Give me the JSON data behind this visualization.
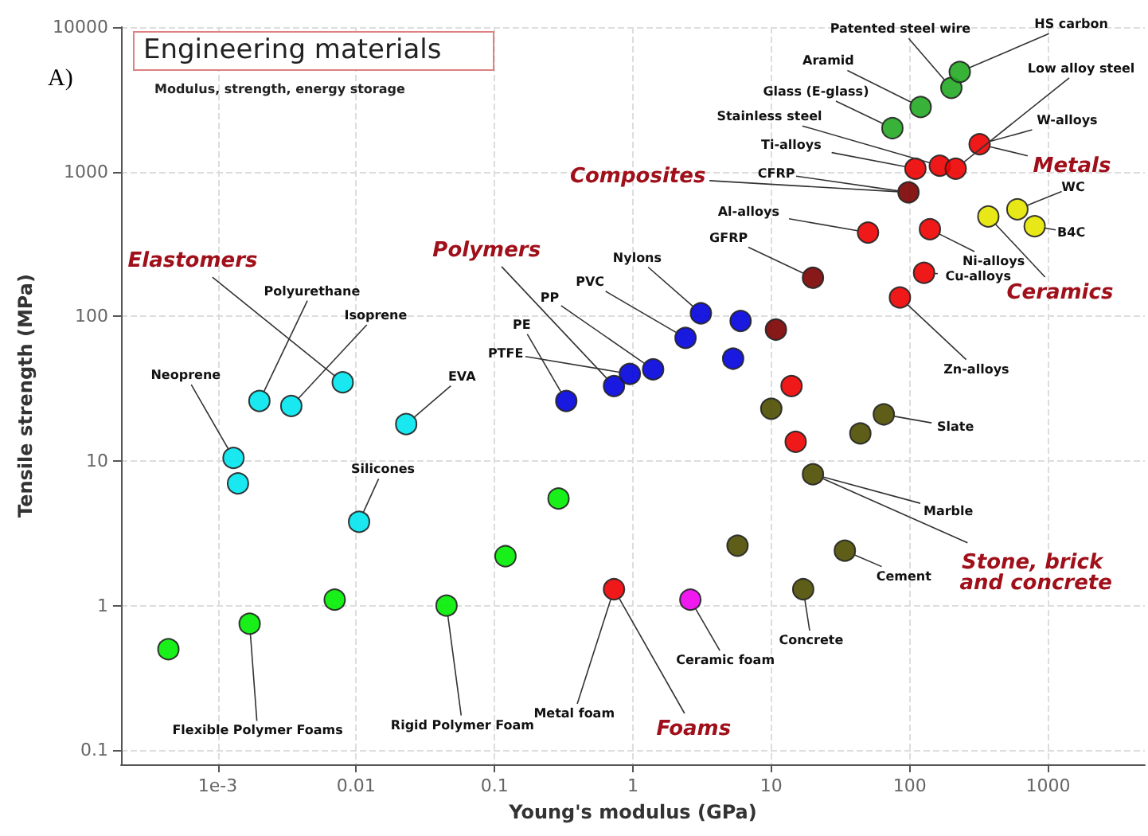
{
  "chart_data": {
    "type": "scatter",
    "title": "Engineering materials",
    "subtitle": "Modulus, strength, energy storage",
    "xlabel": "Young's modulus (GPa)",
    "ylabel": "Tensile strength (MPa)",
    "log": "xy",
    "grid": true,
    "marker": "circle",
    "xlim": [
      0.0002,
      5000
    ],
    "ylim": [
      0.08,
      10000
    ],
    "xticks": [
      {
        "value": 0.001,
        "label": "1e-3"
      },
      0.01,
      0.1,
      1,
      10,
      100,
      1000
    ],
    "yticks": [
      0.1,
      1,
      10,
      100,
      1000,
      10000
    ],
    "series": [
      {
        "name": "Elastomers",
        "color": "#00e5ee",
        "x": [
          0.008,
          0.002,
          0.0034,
          0.0013,
          0.0014,
          0.023,
          0.0105
        ],
        "values": [
          35,
          26,
          24,
          10.5,
          7,
          18,
          3.8
        ]
      },
      {
        "name": "Polymers",
        "color": "#0000dd",
        "x": [
          0.33,
          0.73,
          1.4,
          2.4,
          3.1,
          6,
          5.3,
          0.95
        ],
        "values": [
          26,
          33,
          43,
          71,
          105,
          93,
          51,
          40
        ]
      },
      {
        "name": "Foams",
        "color": "#00ee00",
        "colors": [
          "#00ee00",
          "#00ee00",
          "#00ee00",
          "#00ee00",
          "#00ee00",
          "#00ee00",
          "#ee0000",
          "#ee00ee"
        ],
        "x": [
          0.00044,
          0.0017,
          0.007,
          0.045,
          0.12,
          0.29,
          0.73,
          2.6
        ],
        "values": [
          0.5,
          0.75,
          1.1,
          1,
          2.2,
          5.5,
          1.3,
          1.1
        ]
      },
      {
        "name": "Composites",
        "color": "#7a0000",
        "x": [
          98,
          20,
          10.8
        ],
        "values": [
          720,
          185,
          81
        ]
      },
      {
        "name": "Metals",
        "color": "#ee0000",
        "x": [
          320,
          165,
          215,
          110,
          50,
          140,
          127,
          85,
          14,
          15
        ],
        "values": [
          1550,
          1100,
          1050,
          1050,
          380,
          400,
          200,
          135,
          33,
          13.6
        ]
      },
      {
        "name": "Ceramics",
        "color": "#e6e600",
        "x": [
          370,
          600,
          800
        ],
        "values": [
          490,
          550,
          420
        ]
      },
      {
        "color": "#22aa22",
        "x": [
          75,
          120,
          200,
          230
        ],
        "values": [
          2000,
          2800,
          3800,
          4900
        ]
      },
      {
        "name": "Stone, brick and concrete",
        "color": "#4d4d00",
        "x": [
          65,
          20,
          44,
          10,
          34,
          17,
          5.7
        ],
        "values": [
          21,
          8.1,
          15.5,
          23,
          2.4,
          1.3,
          2.6
        ]
      }
    ],
    "annotations": [
      "A)",
      {
        "text": "Polyurethane",
        "x": 0.002,
        "y": 26
      },
      {
        "text": "Neoprene",
        "x": 0.0013,
        "y": 10.5
      },
      {
        "text": "Isoprene",
        "x": 0.0034,
        "y": 24
      },
      {
        "text": "EVA",
        "x": 0.023,
        "y": 18
      },
      {
        "text": "Silicones",
        "x": 0.0105,
        "y": 3.8
      },
      {
        "text": "PE",
        "x": 0.33,
        "y": 26
      },
      {
        "text": "PTFE",
        "x": 0.95,
        "y": 40
      },
      {
        "text": "PP",
        "x": 1.4,
        "y": 43
      },
      {
        "text": "PVC",
        "x": 2.4,
        "y": 71
      },
      {
        "text": "Nylons",
        "x": 3.1,
        "y": 105
      },
      {
        "text": "Flexible Polymer Foams",
        "x": 0.0017,
        "y": 0.75
      },
      {
        "text": "Rigid Polymer Foam",
        "x": 0.045,
        "y": 1
      },
      {
        "text": "Metal foam",
        "x": 0.73,
        "y": 1.3
      },
      {
        "text": "Ceramic foam",
        "x": 2.6,
        "y": 1.1
      },
      {
        "text": "CFRP",
        "x": 98,
        "y": 720
      },
      {
        "text": "GFRP",
        "x": 20,
        "y": 185
      },
      {
        "text": "Al-alloys",
        "x": 50,
        "y": 380
      },
      {
        "text": "Ti-alloys",
        "x": 110,
        "y": 1050
      },
      {
        "text": "Stainless steel",
        "x": 165,
        "y": 1100
      },
      {
        "text": "Glass (E-glass)",
        "x": 75,
        "y": 2000
      },
      {
        "text": "Aramid",
        "x": 120,
        "y": 2800
      },
      {
        "text": "Patented steel wire",
        "x": 200,
        "y": 3800
      },
      {
        "text": "HS carbon",
        "x": 230,
        "y": 4900
      },
      {
        "text": "Low alloy steel",
        "x": 215,
        "y": 1050
      },
      {
        "text": "W-alloys",
        "x": 320,
        "y": 1550
      },
      {
        "text": "WC",
        "x": 600,
        "y": 550
      },
      {
        "text": "B4C",
        "x": 800,
        "y": 420
      },
      {
        "text": "Ni-alloys",
        "x": 140,
        "y": 400
      },
      {
        "text": "Cu-alloys",
        "x": 127,
        "y": 200
      },
      {
        "text": "Zn-alloys",
        "x": 85,
        "y": 135
      },
      {
        "text": "Slate",
        "x": 65,
        "y": 21
      },
      {
        "text": "Marble",
        "x": 20,
        "y": 8.1
      },
      {
        "text": "Cement",
        "x": 34,
        "y": 2.4
      },
      {
        "text": "Concrete",
        "x": 17,
        "y": 1.3
      }
    ]
  }
}
